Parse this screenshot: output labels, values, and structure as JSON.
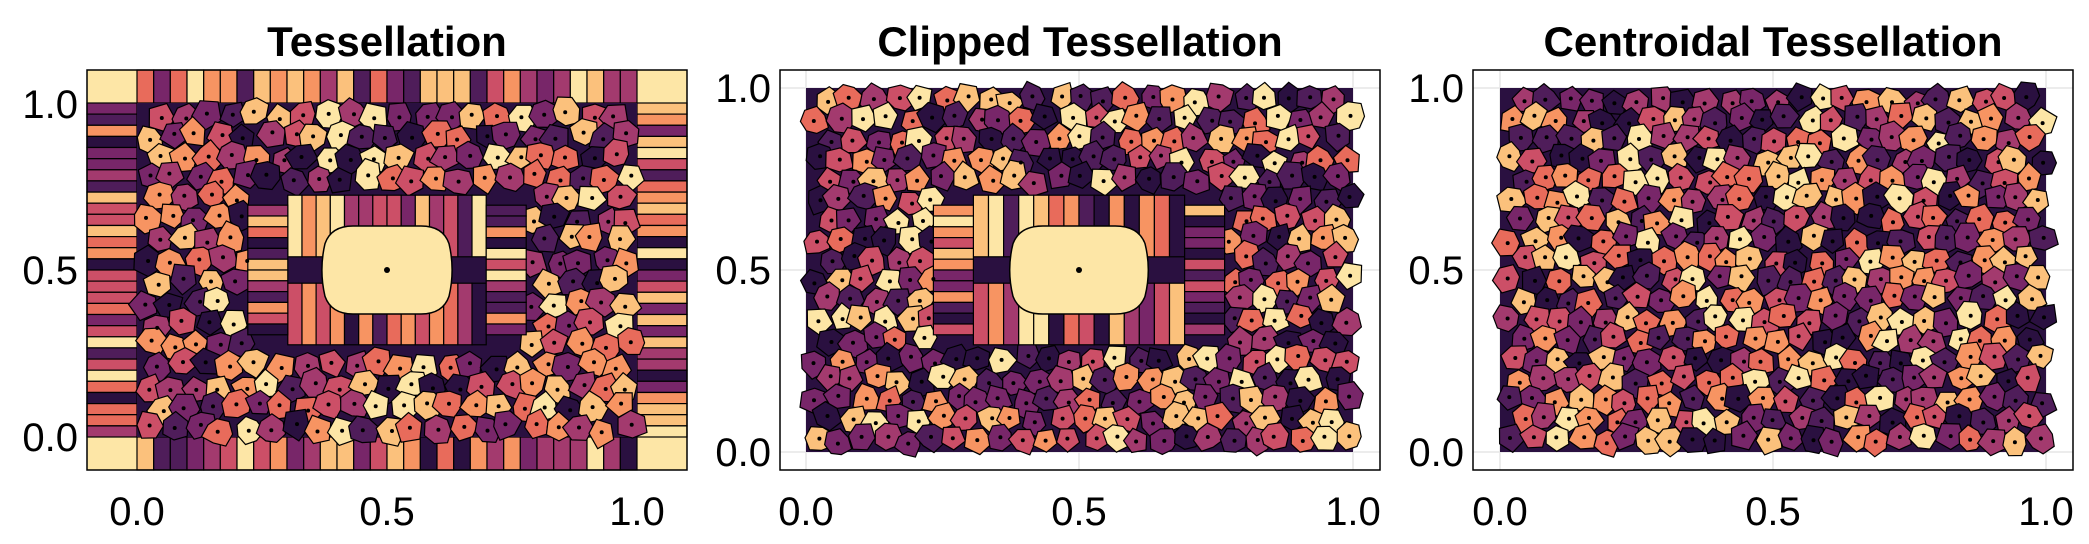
{
  "palette": [
    "#2a1040",
    "#4f1d5a",
    "#782669",
    "#a33a6e",
    "#cc4f67",
    "#e86b5b",
    "#f79462",
    "#fbc17c",
    "#fde6a6"
  ],
  "chart_data": [
    {
      "type": "heatmap",
      "kind": "voronoi-tessellation",
      "title": "Tessellation",
      "xlabel": "",
      "ylabel": "",
      "xlim": [
        -0.1,
        1.1
      ],
      "ylim": [
        -0.1,
        1.1
      ],
      "x_ticks": [
        "0.0",
        "0.5",
        "1.0"
      ],
      "y_ticks": [
        "0.0",
        "0.5",
        "1.0"
      ],
      "grid": true,
      "features": {
        "central_cell_center": [
          0.5,
          0.5
        ],
        "boundary_points": true,
        "unbounded_cells_extend_to_frame": true
      },
      "colormap": "magma-like"
    },
    {
      "type": "heatmap",
      "kind": "voronoi-tessellation-clipped",
      "title": "Clipped Tessellation",
      "xlabel": "",
      "ylabel": "",
      "xlim": [
        -0.05,
        1.05
      ],
      "ylim": [
        -0.05,
        1.05
      ],
      "x_ticks": [
        "0.0",
        "0.5",
        "1.0"
      ],
      "y_ticks": [
        "0.0",
        "0.5",
        "1.0"
      ],
      "grid": true,
      "features": {
        "central_cell_center": [
          0.5,
          0.5
        ],
        "clip_region": [
          0,
          0,
          1,
          1
        ]
      },
      "colormap": "magma-like"
    },
    {
      "type": "heatmap",
      "kind": "centroidal-voronoi-tessellation",
      "title": "Centroidal Tessellation",
      "xlabel": "",
      "ylabel": "",
      "xlim": [
        -0.005,
        1.005
      ],
      "ylim": [
        -0.05,
        1.05
      ],
      "x_ticks": [
        "0.0",
        "0.5",
        "1.0"
      ],
      "y_ticks": [
        "0.0",
        "0.5",
        "1.0"
      ],
      "grid": true,
      "features": {
        "clip_region": [
          0,
          0,
          1,
          1
        ],
        "uniform_cells": true
      },
      "colormap": "magma-like"
    }
  ]
}
